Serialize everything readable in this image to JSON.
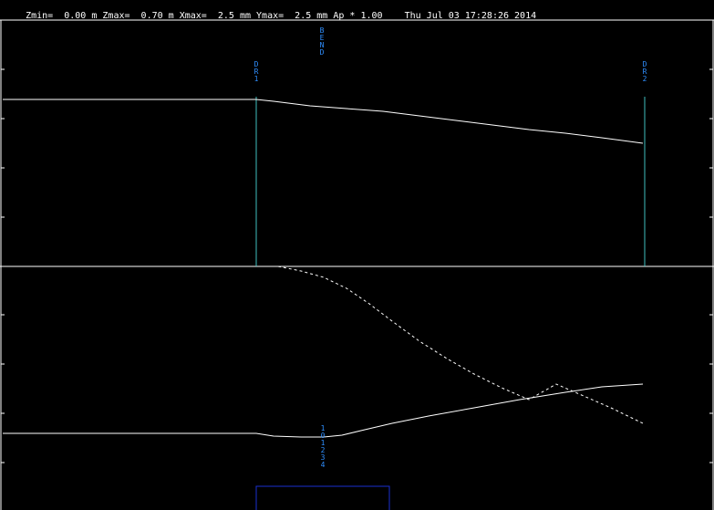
{
  "header": {
    "zmin": "Zmin=  0.00 m",
    "zmax": "Zmax=  0.70 m",
    "xmax": "Xmax=  2.5 mm",
    "ymax": "Ymax=  2.5 mm",
    "ap": "Ap * 1.00",
    "timestamp": "Thu Jul 03 17:28:26 2014"
  },
  "elements": {
    "dr1": {
      "chars": [
        "D",
        "R",
        "1"
      ]
    },
    "dr2": {
      "chars": [
        "D",
        "R",
        "2"
      ]
    },
    "bend": {
      "chars": [
        "B",
        "E",
        "N",
        "D"
      ]
    },
    "marker": {
      "chars": [
        "1",
        "0",
        "1",
        "2",
        "3",
        "4"
      ]
    }
  },
  "colors": {
    "background": "#000000",
    "text": "#ffffff",
    "trace": "#ffffff",
    "element_line": "#40c0c0",
    "element_label": "#2f8fff",
    "box": "#1a2fd0"
  }
}
